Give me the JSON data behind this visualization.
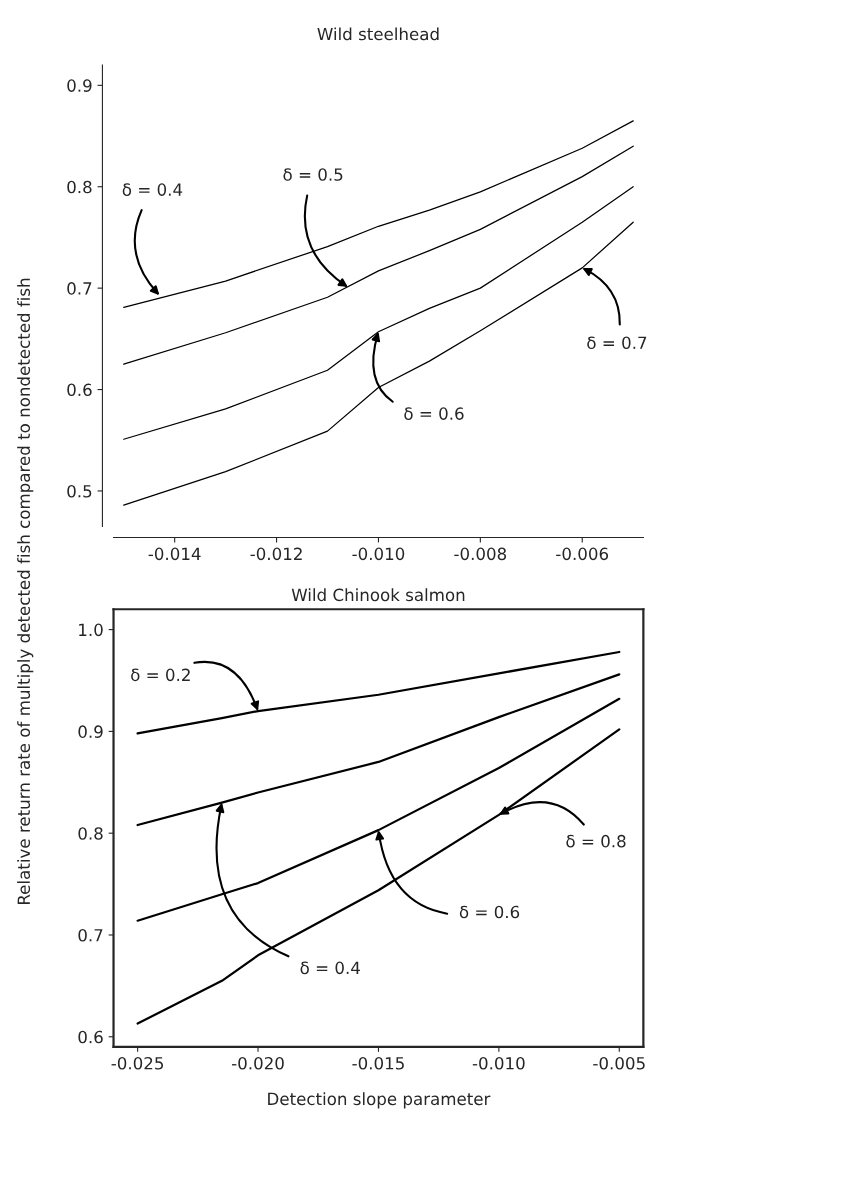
{
  "chart_data": [
    {
      "type": "line",
      "title": "Wild steelhead",
      "ylabel": "Relative return rate of multiply detected fish compared to nondetected fish",
      "x": [
        -0.015,
        -0.013,
        -0.011,
        -0.01,
        -0.009,
        -0.008,
        -0.006,
        -0.005
      ],
      "series": [
        {
          "color": "#000000",
          "values": [
            0.681,
            0.707,
            0.741,
            0.761,
            0.777,
            0.795,
            0.838,
            0.865
          ]
        },
        {
          "color": "#000000",
          "values": [
            0.625,
            0.656,
            0.691,
            0.717,
            0.737,
            0.758,
            0.81,
            0.84
          ]
        },
        {
          "color": "#000000",
          "values": [
            0.551,
            0.581,
            0.619,
            0.657,
            0.68,
            0.7,
            0.765,
            0.8
          ]
        },
        {
          "color": "#000000",
          "values": [
            0.486,
            0.519,
            0.559,
            0.602,
            0.628,
            0.658,
            0.72,
            0.765
          ]
        }
      ],
      "xlim": [
        -0.0152,
        -0.0048
      ],
      "xticks": [
        -0.014,
        -0.012,
        {
          "value": -0.01,
          "label": "-0.010"
        },
        -0.008,
        -0.006
      ],
      "ylim": [
        0.465,
        0.92
      ],
      "yticks": [
        0.5,
        0.6,
        0.7,
        0.8,
        0.9
      ],
      "grid": false,
      "legend": false,
      "marker": "none",
      "line_style": "solid",
      "annotations": [
        {
          "text": "δ = 0.4",
          "x": -0.0143,
          "y": 0.693
        },
        {
          "text": "δ = 0.5",
          "x": -0.0106,
          "y": 0.701
        },
        {
          "text": "δ = 0.6",
          "x": -0.01,
          "y": 0.657
        },
        {
          "text": "δ = 0.7",
          "x": -0.006,
          "y": 0.72
        }
      ]
    },
    {
      "type": "line",
      "title": "Wild Chinook salmon",
      "xlabel": "Detection slope parameter",
      "x": [
        -0.025,
        -0.0215,
        -0.02,
        -0.015,
        -0.01,
        -0.005
      ],
      "series": [
        {
          "color": "#000000",
          "values": [
            0.898,
            0.913,
            0.92,
            0.936,
            0.957,
            0.978
          ]
        },
        {
          "color": "#000000",
          "values": [
            0.808,
            0.83,
            0.84,
            0.87,
            0.914,
            0.956
          ]
        },
        {
          "color": "#000000",
          "values": [
            0.714,
            0.74,
            0.751,
            0.803,
            0.864,
            0.932
          ]
        },
        {
          "color": "#000000",
          "values": [
            0.613,
            0.655,
            0.68,
            0.744,
            0.818,
            0.902
          ]
        }
      ],
      "xlim": [
        -0.026,
        -0.004
      ],
      "xticks": [
        {
          "value": -0.025,
          "label": "-0.025"
        },
        {
          "value": -0.02,
          "label": "-0.020"
        },
        -0.015,
        {
          "value": -0.01,
          "label": "-0.010"
        },
        -0.005
      ],
      "ylim": [
        0.59,
        1.02
      ],
      "yticks": [
        0.6,
        0.7,
        0.8,
        0.9,
        {
          "value": 1.0,
          "label": "1.0"
        }
      ],
      "grid": false,
      "legend": false,
      "marker": "none",
      "line_style": "solid",
      "annotations": [
        {
          "text": "δ = 0.2",
          "x": -0.02,
          "y": 0.92
        },
        {
          "text": "δ = 0.4",
          "x": -0.0215,
          "y": 0.83
        },
        {
          "text": "δ = 0.6",
          "x": -0.015,
          "y": 0.803
        },
        {
          "text": "δ = 0.8",
          "x": -0.01,
          "y": 0.818
        }
      ]
    }
  ]
}
